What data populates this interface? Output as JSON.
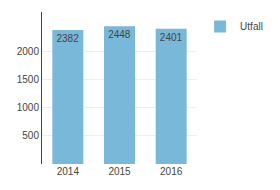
{
  "chart_data": {
    "type": "bar",
    "categories": [
      "2014",
      "2015",
      "2016"
    ],
    "series": [
      {
        "name": "Utfall",
        "color": "#79B8D8",
        "values": [
          2382,
          2448,
          2401
        ]
      }
    ],
    "ylim": [
      0,
      2700
    ],
    "yticks": [
      500,
      1000,
      1500,
      2000
    ],
    "grid": true,
    "legend": "right",
    "data_labels": true
  }
}
